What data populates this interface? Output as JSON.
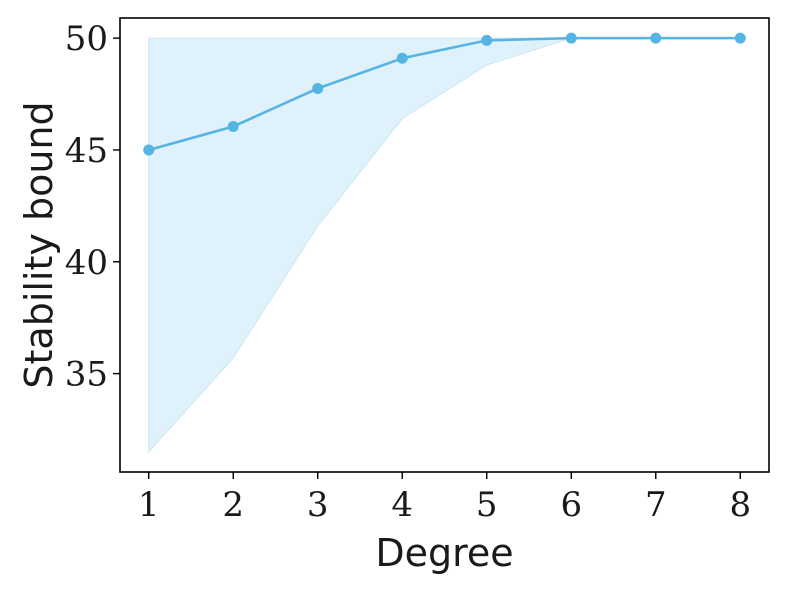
{
  "chart_data": {
    "type": "line",
    "x": [
      1,
      2,
      3,
      4,
      5,
      6,
      7,
      8
    ],
    "series": [
      {
        "values": [
          45.0,
          46.05,
          47.75,
          49.1,
          49.9,
          50.0,
          50.0,
          50.0
        ],
        "band_lower": [
          31.5,
          35.7,
          41.6,
          46.4,
          48.8,
          50.0,
          50.0,
          50.0
        ],
        "band_upper": [
          50.0,
          50.0,
          50.0,
          50.0,
          50.0,
          50.0,
          50.0,
          50.0
        ],
        "color": "#56b4e3",
        "band_color": "#dff1fa"
      }
    ],
    "xlabel": "Degree",
    "ylabel": "Stability bound",
    "xlim": [
      0.66,
      8.34
    ],
    "ylim": [
      30.6,
      50.9
    ],
    "xticks": [
      "1",
      "2",
      "3",
      "4",
      "5",
      "6",
      "7",
      "8"
    ],
    "yticks": [
      "35",
      "40",
      "45",
      "50"
    ],
    "grid": false
  }
}
